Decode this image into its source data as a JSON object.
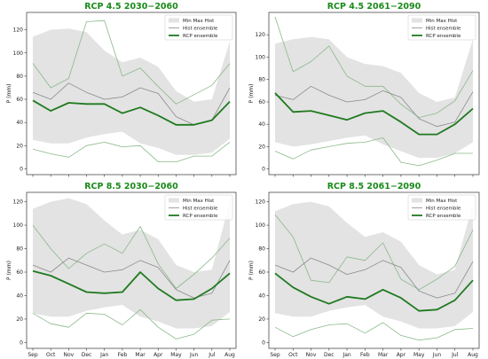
{
  "figure": {
    "colors": {
      "band": "#e3e3e3",
      "hist": "#8a8a8a",
      "rcp": "#1f7a1f",
      "minmax_lines": "#8ab88a",
      "title": "#1a8a1a"
    }
  },
  "chart_data": [
    {
      "type": "line",
      "title": "RCP 4.5 2030−2060",
      "ylabel": "P (mm)",
      "ylim": [
        -5,
        135
      ],
      "yticks": [
        "0",
        "20",
        "40",
        "60",
        "80",
        "100",
        "120"
      ],
      "categories": [
        "Sep",
        "Oct",
        "Nov",
        "Dec",
        "Jan",
        "Feb",
        "Mar",
        "Apr",
        "May",
        "Jun",
        "Jul",
        "Aug"
      ],
      "show_xticks": false,
      "legend": {
        "position": "top-right",
        "items": [
          "Min Max Hist",
          "Hist ensemble",
          "RCP ensemble"
        ]
      },
      "band": {
        "name": "Min Max Hist",
        "lower": [
          25,
          22,
          22,
          27,
          30,
          32,
          22,
          18,
          12,
          12,
          14,
          26
        ],
        "upper": [
          114,
          120,
          121,
          118,
          102,
          92,
          96,
          88,
          67,
          58,
          60,
          110
        ]
      },
      "series": [
        {
          "name": "Hist ensemble",
          "role": "hist",
          "values": [
            66,
            60,
            74,
            66,
            60,
            62,
            70,
            65,
            45,
            38,
            42,
            70
          ]
        },
        {
          "name": "RCP ensemble",
          "role": "rcp",
          "values": [
            59,
            50,
            57,
            56,
            56,
            48,
            53,
            46,
            38,
            38,
            42,
            58
          ]
        },
        {
          "role": "max",
          "values": [
            91,
            70,
            78,
            127,
            128,
            80,
            87,
            71,
            56,
            64,
            72,
            91
          ]
        },
        {
          "role": "min",
          "values": [
            17,
            13,
            10,
            20,
            23,
            19,
            20,
            6,
            6,
            11,
            11,
            23
          ]
        }
      ]
    },
    {
      "type": "line",
      "title": "RCP 4.5 2061−2090",
      "ylabel": "P (mm)",
      "ylim": [
        -5,
        140
      ],
      "yticks": [
        "0",
        "20",
        "40",
        "60",
        "80",
        "100",
        "120"
      ],
      "categories": [
        "Sep",
        "Oct",
        "Nov",
        "Dec",
        "Jan",
        "Feb",
        "Mar",
        "Apr",
        "May",
        "Jun",
        "Jul",
        "Aug"
      ],
      "show_xticks": false,
      "legend": {
        "position": "top-right",
        "items": [
          "Min Max Hist",
          "Hist ensemble",
          "RCP ensemble"
        ]
      },
      "band": {
        "name": "Min Max Hist",
        "lower": [
          24,
          20,
          22,
          25,
          28,
          30,
          22,
          16,
          10,
          10,
          14,
          24
        ],
        "upper": [
          112,
          116,
          118,
          116,
          100,
          94,
          92,
          86,
          68,
          60,
          64,
          116
        ]
      },
      "series": [
        {
          "name": "Hist ensemble",
          "role": "hist",
          "values": [
            66,
            62,
            74,
            66,
            60,
            62,
            70,
            64,
            45,
            38,
            42,
            69
          ]
        },
        {
          "name": "RCP ensemble",
          "role": "rcp",
          "values": [
            68,
            51,
            52,
            48,
            44,
            50,
            52,
            42,
            31,
            31,
            40,
            54
          ]
        },
        {
          "role": "max",
          "values": [
            136,
            87,
            96,
            110,
            83,
            74,
            74,
            58,
            46,
            50,
            61,
            88
          ]
        },
        {
          "role": "min",
          "values": [
            16,
            9,
            17,
            20,
            23,
            24,
            28,
            6,
            3,
            8,
            14,
            14
          ]
        }
      ]
    },
    {
      "type": "line",
      "title": "RCP 8.5 2030−2060",
      "ylabel": "P (mm)",
      "ylim": [
        -5,
        128
      ],
      "yticks": [
        "0",
        "20",
        "40",
        "60",
        "80",
        "100",
        "120"
      ],
      "categories": [
        "Sep",
        "Oct",
        "Nov",
        "Dec",
        "Jan",
        "Feb",
        "Mar",
        "Apr",
        "May",
        "Jun",
        "Jul",
        "Aug"
      ],
      "show_xticks": true,
      "legend": {
        "position": "top-right",
        "items": [
          "Min Max Hist",
          "Hist ensemble",
          "RCP ensemble"
        ]
      },
      "band": {
        "name": "Min Max Hist",
        "lower": [
          25,
          22,
          22,
          27,
          30,
          32,
          22,
          18,
          12,
          12,
          14,
          26
        ],
        "upper": [
          114,
          120,
          123,
          118,
          104,
          92,
          96,
          88,
          66,
          60,
          62,
          120
        ]
      },
      "series": [
        {
          "name": "Hist ensemble",
          "role": "hist",
          "values": [
            66,
            60,
            72,
            66,
            60,
            62,
            70,
            64,
            45,
            38,
            42,
            70
          ]
        },
        {
          "name": "RCP ensemble",
          "role": "rcp",
          "values": [
            61,
            57,
            50,
            43,
            42,
            43,
            60,
            46,
            36,
            37,
            46,
            59
          ]
        },
        {
          "role": "max",
          "values": [
            100,
            80,
            63,
            76,
            84,
            76,
            99,
            67,
            46,
            58,
            72,
            89
          ]
        },
        {
          "role": "min",
          "values": [
            25,
            16,
            13,
            25,
            24,
            15,
            28,
            13,
            3,
            7,
            19,
            20
          ]
        }
      ]
    },
    {
      "type": "line",
      "title": "RCP 8.5 2061−2090",
      "ylabel": "P (mm)",
      "ylim": [
        -5,
        128
      ],
      "yticks": [
        "0",
        "20",
        "40",
        "60",
        "80",
        "100",
        "120"
      ],
      "categories": [
        "Sep",
        "Oct",
        "Nov",
        "Dec",
        "Jan",
        "Feb",
        "Mar",
        "Apr",
        "May",
        "Jun",
        "Jul",
        "Aug"
      ],
      "show_xticks": true,
      "legend": {
        "position": "top-right",
        "items": [
          "Min Max Hist",
          "Hist ensemble",
          "RCP ensemble"
        ]
      },
      "band": {
        "name": "Min Max Hist",
        "lower": [
          25,
          22,
          22,
          27,
          30,
          32,
          22,
          18,
          12,
          12,
          14,
          26
        ],
        "upper": [
          112,
          118,
          120,
          116,
          102,
          90,
          94,
          86,
          66,
          58,
          62,
          118
        ]
      },
      "series": [
        {
          "name": "Hist ensemble",
          "role": "hist",
          "values": [
            66,
            60,
            72,
            66,
            58,
            62,
            70,
            64,
            44,
            38,
            42,
            69
          ]
        },
        {
          "name": "RCP ensemble",
          "role": "rcp",
          "values": [
            59,
            47,
            39,
            33,
            39,
            37,
            45,
            38,
            27,
            28,
            36,
            53
          ]
        },
        {
          "role": "max",
          "values": [
            109,
            90,
            53,
            51,
            73,
            70,
            85,
            54,
            45,
            54,
            65,
            96
          ]
        },
        {
          "role": "min",
          "values": [
            13,
            5,
            11,
            15,
            16,
            8,
            17,
            6,
            2,
            4,
            11,
            12
          ]
        }
      ]
    }
  ]
}
